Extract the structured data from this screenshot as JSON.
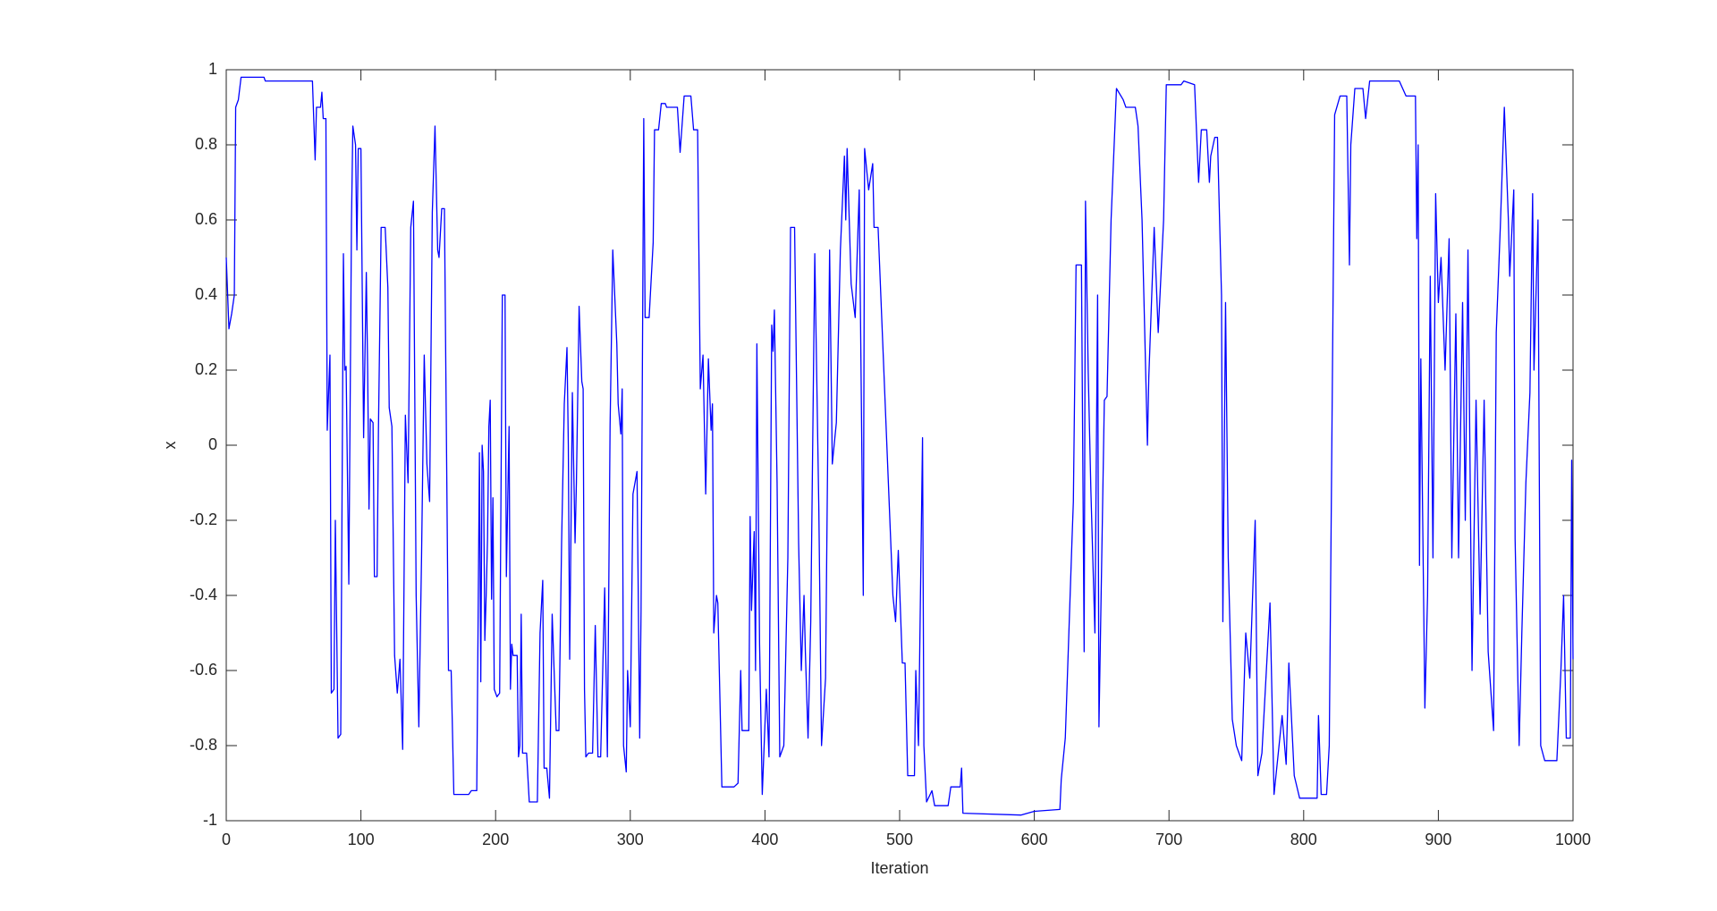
{
  "chart_data": {
    "type": "line",
    "xlabel": "Iteration",
    "ylabel": "x",
    "xlim": [
      0,
      1000
    ],
    "ylim": [
      -1,
      1
    ],
    "xticks": [
      0,
      100,
      200,
      300,
      400,
      500,
      600,
      700,
      800,
      900,
      1000
    ],
    "yticks": [
      -1,
      -0.8,
      -0.6,
      -0.4,
      -0.2,
      0,
      0.2,
      0.4,
      0.6,
      0.8,
      1
    ],
    "color": "#0000ff",
    "x": [
      0,
      2,
      4,
      6,
      7,
      9,
      11,
      28,
      29,
      64,
      66,
      67,
      70,
      71,
      72,
      74,
      75,
      77,
      78,
      80,
      81,
      83,
      85,
      87,
      88,
      89,
      91,
      93,
      94,
      96,
      97,
      98,
      100,
      102,
      104,
      105,
      106,
      107,
      109,
      110,
      112,
      113,
      115,
      118,
      120,
      121,
      123,
      125,
      127,
      129,
      131,
      133,
      135,
      137,
      139,
      141,
      143,
      145,
      147,
      149,
      151,
      153,
      155,
      157,
      158,
      160,
      162,
      165,
      167,
      169,
      180,
      182,
      186,
      188,
      189,
      190,
      191,
      192,
      193,
      194,
      195,
      196,
      197,
      198,
      199,
      201,
      203,
      205,
      207,
      208,
      210,
      211,
      212,
      213,
      216,
      217,
      218,
      219,
      220,
      223,
      225,
      231,
      233,
      235,
      236,
      238,
      240,
      242,
      245,
      247,
      249,
      251,
      253,
      254,
      255,
      257,
      259,
      260,
      262,
      264,
      265,
      266,
      267,
      269,
      272,
      274,
      276,
      278,
      281,
      283,
      285,
      287,
      290,
      291,
      293,
      294,
      295,
      297,
      298,
      300,
      302,
      305,
      307,
      308,
      310,
      311,
      314,
      317,
      318,
      321,
      323,
      326,
      327,
      335,
      337,
      340,
      345,
      347,
      350,
      352,
      354,
      356,
      358,
      360,
      361,
      362,
      364,
      365,
      368,
      377,
      380,
      382,
      383,
      388,
      389,
      390,
      392,
      393,
      394,
      396,
      398,
      401,
      403,
      405,
      406,
      407,
      409,
      411,
      414,
      417,
      419,
      422,
      425,
      427,
      429,
      430,
      432,
      434,
      437,
      440,
      442,
      445,
      448,
      450,
      453,
      456,
      459,
      460,
      461,
      464,
      467,
      470,
      473,
      474,
      477,
      480,
      481,
      484,
      495,
      497,
      499,
      502,
      504,
      506,
      511,
      512,
      514,
      517,
      518,
      520,
      524,
      526,
      536,
      538,
      545,
      546,
      547,
      590,
      600,
      619,
      620,
      623,
      625,
      628,
      629,
      631,
      635,
      637,
      638,
      640,
      642,
      645,
      647,
      648,
      652,
      654,
      657,
      661,
      666,
      668,
      675,
      677,
      680,
      684,
      685,
      689,
      692,
      696,
      698,
      709,
      711,
      719,
      722,
      724,
      728,
      730,
      731,
      734,
      736,
      739,
      740,
      742,
      744,
      747,
      750,
      754,
      757,
      760,
      764,
      766,
      769,
      775,
      778,
      784,
      787,
      789,
      793,
      797,
      810,
      811,
      813,
      817,
      819,
      823,
      827,
      832,
      834,
      835,
      838,
      844,
      846,
      849,
      871,
      876,
      883,
      884,
      885,
      886,
      887,
      890,
      892,
      894,
      896,
      898,
      900,
      902,
      905,
      908,
      910,
      913,
      915,
      918,
      920,
      922,
      925,
      928,
      931,
      934,
      937,
      941,
      943,
      946,
      949,
      952,
      953,
      956,
      957,
      960,
      962,
      965,
      968,
      970,
      971,
      974,
      976,
      979,
      983,
      988,
      991,
      993,
      995,
      998,
      999,
      1000
    ],
    "values": [
      0.5,
      0.31,
      0.35,
      0.4,
      0.9,
      0.92,
      0.98,
      0.98,
      0.97,
      0.97,
      0.76,
      0.9,
      0.9,
      0.94,
      0.87,
      0.87,
      0.04,
      0.24,
      -0.66,
      -0.65,
      -0.2,
      -0.78,
      -0.77,
      0.51,
      0.2,
      0.21,
      -0.37,
      0.6,
      0.85,
      0.8,
      0.52,
      0.79,
      0.79,
      0.02,
      0.46,
      0.2,
      -0.17,
      0.07,
      0.06,
      -0.35,
      -0.35,
      0.04,
      0.58,
      0.58,
      0.42,
      0.1,
      0.05,
      -0.56,
      -0.66,
      -0.57,
      -0.81,
      0.08,
      -0.1,
      0.58,
      0.65,
      -0.4,
      -0.75,
      -0.3,
      0.24,
      -0.05,
      -0.15,
      0.62,
      0.85,
      0.52,
      0.5,
      0.63,
      0.63,
      -0.6,
      -0.6,
      -0.93,
      -0.93,
      -0.92,
      -0.92,
      -0.02,
      -0.63,
      0.0,
      -0.07,
      -0.52,
      -0.4,
      -0.25,
      0.05,
      0.12,
      -0.41,
      -0.14,
      -0.65,
      -0.67,
      -0.66,
      0.4,
      0.4,
      -0.35,
      0.05,
      -0.65,
      -0.53,
      -0.56,
      -0.56,
      -0.83,
      -0.8,
      -0.45,
      -0.82,
      -0.82,
      -0.95,
      -0.95,
      -0.5,
      -0.36,
      -0.86,
      -0.86,
      -0.94,
      -0.45,
      -0.76,
      -0.76,
      -0.26,
      0.11,
      0.26,
      0.0,
      -0.57,
      0.14,
      -0.26,
      -0.1,
      0.37,
      0.17,
      0.15,
      -0.65,
      -0.83,
      -0.82,
      -0.82,
      -0.48,
      -0.83,
      -0.83,
      -0.38,
      -0.83,
      0.05,
      0.52,
      0.27,
      0.11,
      0.03,
      0.15,
      -0.8,
      -0.87,
      -0.6,
      -0.75,
      -0.13,
      -0.07,
      -0.78,
      -0.44,
      0.87,
      0.34,
      0.34,
      0.54,
      0.84,
      0.84,
      0.91,
      0.91,
      0.9,
      0.9,
      0.78,
      0.93,
      0.93,
      0.84,
      0.84,
      0.15,
      0.24,
      -0.13,
      0.23,
      0.04,
      0.11,
      -0.5,
      -0.4,
      -0.42,
      -0.91,
      -0.91,
      -0.9,
      -0.6,
      -0.76,
      -0.76,
      -0.19,
      -0.44,
      -0.23,
      -0.6,
      0.27,
      -0.53,
      -0.93,
      -0.65,
      -0.83,
      0.32,
      0.25,
      0.36,
      -0.1,
      -0.83,
      -0.8,
      -0.3,
      0.58,
      0.58,
      -0.26,
      -0.6,
      -0.4,
      -0.55,
      -0.78,
      -0.47,
      0.51,
      -0.17,
      -0.8,
      -0.62,
      0.52,
      -0.05,
      0.06,
      0.52,
      0.77,
      0.6,
      0.79,
      0.43,
      0.34,
      0.68,
      -0.4,
      0.79,
      0.68,
      0.75,
      0.58,
      0.58,
      -0.4,
      -0.47,
      -0.28,
      -0.58,
      -0.58,
      -0.88,
      -0.88,
      -0.6,
      -0.8,
      0.02,
      -0.8,
      -0.95,
      -0.92,
      -0.96,
      -0.96,
      -0.91,
      -0.91,
      -0.86,
      -0.98,
      -0.985,
      -0.975,
      -0.97,
      -0.89,
      -0.78,
      -0.57,
      -0.25,
      -0.15,
      0.48,
      0.48,
      -0.55,
      0.65,
      0.2,
      -0.12,
      -0.5,
      0.4,
      -0.75,
      0.12,
      0.13,
      0.6,
      0.95,
      0.92,
      0.9,
      0.9,
      0.85,
      0.6,
      0.0,
      0.18,
      0.58,
      0.3,
      0.6,
      0.96,
      0.96,
      0.97,
      0.96,
      0.7,
      0.84,
      0.84,
      0.7,
      0.77,
      0.82,
      0.82,
      0.4,
      -0.47,
      0.38,
      -0.3,
      -0.73,
      -0.8,
      -0.84,
      -0.5,
      -0.62,
      -0.2,
      -0.88,
      -0.82,
      -0.42,
      -0.93,
      -0.72,
      -0.85,
      -0.58,
      -0.88,
      -0.94,
      -0.94,
      -0.72,
      -0.93,
      -0.93,
      -0.8,
      0.88,
      0.93,
      0.93,
      0.48,
      0.8,
      0.95,
      0.95,
      0.87,
      0.97,
      0.97,
      0.93,
      0.93,
      0.55,
      0.8,
      -0.32,
      0.23,
      -0.7,
      -0.4,
      0.45,
      -0.3,
      0.67,
      0.38,
      0.5,
      0.2,
      0.55,
      -0.3,
      0.35,
      -0.3,
      0.38,
      -0.2,
      0.52,
      -0.6,
      0.12,
      -0.45,
      0.12,
      -0.55,
      -0.76,
      0.3,
      0.58,
      0.9,
      0.6,
      0.45,
      0.68,
      -0.25,
      -0.8,
      -0.5,
      -0.1,
      0.14,
      0.67,
      0.2,
      0.6,
      -0.8,
      -0.84,
      -0.84,
      -0.84,
      -0.6,
      -0.4,
      -0.78,
      -0.78,
      -0.04,
      -0.57
    ]
  }
}
